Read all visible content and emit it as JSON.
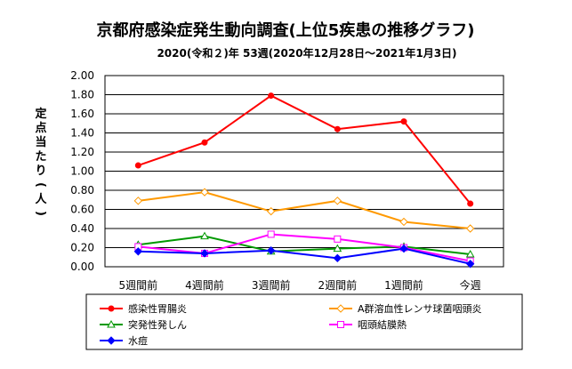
{
  "chart_data": {
    "type": "line",
    "title": "京都府感染症発生動向調査(上位5疾患の推移グラフ)",
    "subtitle": "2020(令和２)年 53週(2020年12月28日～2021年1月3日)",
    "ylabel": "定点当たり(人)",
    "xlabel": "",
    "ylim": [
      0,
      2.0
    ],
    "yticks": [
      "0.00",
      "0.20",
      "0.40",
      "0.60",
      "0.80",
      "1.00",
      "1.20",
      "1.40",
      "1.60",
      "1.80",
      "2.00"
    ],
    "categories": [
      "5週間前",
      "4週間前",
      "3週間前",
      "2週間前",
      "1週間前",
      "今週"
    ],
    "grid": true,
    "legend_position": "bottom",
    "series": [
      {
        "name": "感染性胃腸炎",
        "color": "#ff0000",
        "marker": "circle",
        "values": [
          1.06,
          1.3,
          1.79,
          1.44,
          1.52,
          0.66
        ]
      },
      {
        "name": "A群溶血性レンサ球菌咽頭炎",
        "color": "#ff9900",
        "marker": "diamond",
        "values": [
          0.69,
          0.78,
          0.58,
          0.69,
          0.47,
          0.4
        ]
      },
      {
        "name": "突発性発しん",
        "color": "#009900",
        "marker": "triangle",
        "values": [
          0.23,
          0.32,
          0.16,
          0.19,
          0.21,
          0.13
        ]
      },
      {
        "name": "咽頭結膜熱",
        "color": "#ff00ff",
        "marker": "square",
        "values": [
          0.21,
          0.14,
          0.34,
          0.29,
          0.2,
          0.06
        ]
      },
      {
        "name": "水痘",
        "color": "#0000ff",
        "marker": "diamond",
        "values": [
          0.16,
          0.14,
          0.17,
          0.09,
          0.19,
          0.03
        ]
      }
    ]
  }
}
